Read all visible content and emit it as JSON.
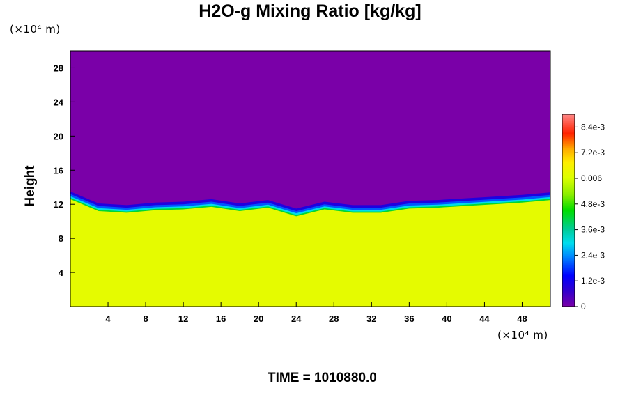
{
  "chart_data": {
    "type": "heatmap",
    "title": "H2O-g Mixing Ratio [kg/kg]",
    "xlabel": "",
    "ylabel": "Height",
    "x_unit": "(×10⁴ m)",
    "y_unit": "(×10⁴ m)",
    "xlim": [
      0,
      51
    ],
    "ylim": [
      0,
      30
    ],
    "x_ticks": [
      "4",
      "8",
      "12",
      "16",
      "20",
      "24",
      "28",
      "32",
      "36",
      "40",
      "44",
      "48"
    ],
    "y_ticks": [
      "4",
      "8",
      "12",
      "16",
      "20",
      "24",
      "28"
    ],
    "colorbar": {
      "min": 0,
      "max": 0.009,
      "labels": [
        "0",
        "1.2e-3",
        "2.4e-3",
        "3.6e-3",
        "4.8e-3",
        "0.006",
        "7.2e-3",
        "8.4e-3"
      ],
      "label_values": [
        0,
        0.0012,
        0.0024,
        0.0036,
        0.0048,
        0.006,
        0.0072,
        0.0084
      ]
    },
    "field_summary": {
      "upper_layer_value": 0,
      "lower_layer_value": 0.0062,
      "interface_height": [
        [
          0,
          12.6
        ],
        [
          3,
          11.2
        ],
        [
          6,
          11.0
        ],
        [
          9,
          11.3
        ],
        [
          12,
          11.4
        ],
        [
          15,
          11.7
        ],
        [
          18,
          11.2
        ],
        [
          21,
          11.6
        ],
        [
          24,
          10.6
        ],
        [
          27,
          11.4
        ],
        [
          30,
          11.0
        ],
        [
          33,
          11.0
        ],
        [
          36,
          11.5
        ],
        [
          39,
          11.6
        ],
        [
          42,
          11.8
        ],
        [
          45,
          12.0
        ],
        [
          48,
          12.2
        ],
        [
          51,
          12.5
        ]
      ]
    }
  },
  "time_label": "TIME = 1010880.0",
  "colors": {
    "upper": "#7400a6",
    "lower": "#d9ff00",
    "frame": "#000000"
  }
}
